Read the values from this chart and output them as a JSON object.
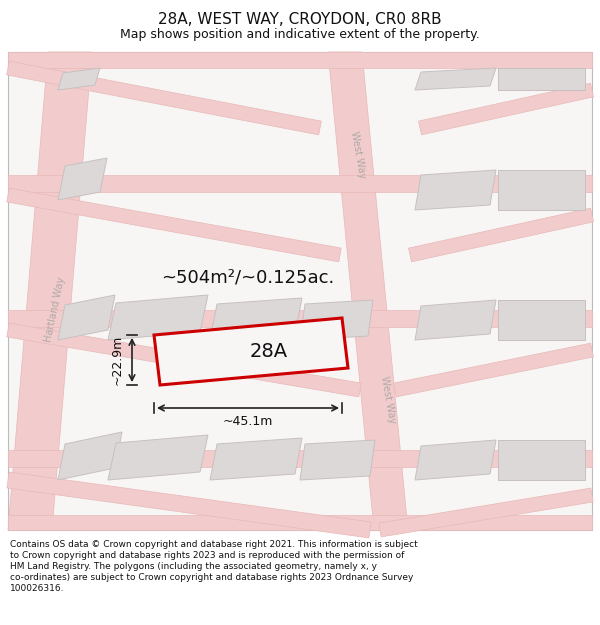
{
  "title": "28A, WEST WAY, CROYDON, CR0 8RB",
  "subtitle": "Map shows position and indicative extent of the property.",
  "footer_lines": [
    "Contains OS data © Crown copyright and database right 2021. This information is subject",
    "to Crown copyright and database rights 2023 and is reproduced with the permission of",
    "HM Land Registry. The polygons (including the associated geometry, namely x, y",
    "co-ordinates) are subject to Crown copyright and database rights 2023 Ordnance Survey",
    "100026316."
  ],
  "area_label": "~504m²/~0.125ac.",
  "width_label": "~45.1m",
  "height_label": "~22.9m",
  "plot_label": "28A",
  "map_bg": "#f8f5f5",
  "road_color": "#f2cccc",
  "road_outline": "#e8b8b8",
  "building_fill": "#ddd8d8",
  "building_outline": "#c8c0c0",
  "plot_outline": "#cc0000",
  "plot_fill": "#f8f5f5",
  "road_label_color": "#b0a8a8",
  "dim_line_color": "#222222",
  "title_fontsize": 11,
  "subtitle_fontsize": 9,
  "footer_fontsize": 6.5,
  "area_fontsize": 13,
  "plot_label_fontsize": 14,
  "dim_fontsize": 9
}
